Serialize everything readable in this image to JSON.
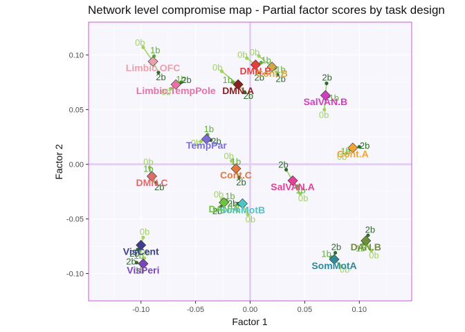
{
  "chart_data": {
    "type": "scatter",
    "title": "Network level compromise map - Partial factor scores by task design",
    "xlabel": "Factor 1",
    "ylabel": "Factor 2",
    "xlim": [
      -0.148,
      0.148
    ],
    "ylim": [
      -0.125,
      0.13
    ],
    "xticks": [
      -0.1,
      -0.05,
      0.0,
      0.05,
      0.1
    ],
    "yticks": [
      -0.1,
      -0.05,
      0.0,
      0.05,
      0.1
    ],
    "xtick_labels": [
      "-0.10",
      "-0.05",
      "0.00",
      "0.05",
      "0.10"
    ],
    "ytick_labels": [
      "-0.10",
      "-0.05",
      "0.00",
      "0.05",
      "0.10"
    ],
    "grid": true,
    "legend": "none",
    "dimension_colors": {
      "0b": "#9fd35f",
      "1b": "#5fae3a",
      "2b": "#2e6b2a"
    },
    "series": [
      {
        "name": "Limbic.OFC",
        "color": "#e8a0aa",
        "center": [
          -0.089,
          0.094
        ],
        "partials": {
          "0b": [
            -0.098,
            0.107
          ],
          "1b": [
            -0.088,
            0.099
          ],
          "2b": [
            -0.084,
            0.084
          ]
        }
      },
      {
        "name": "Limbic.TempPole",
        "color": "#ec6fa5",
        "center": [
          -0.068,
          0.073
        ],
        "partials": {
          "0b": [
            -0.073,
            0.069
          ],
          "1b": [
            -0.067,
            0.074
          ],
          "2b": [
            -0.063,
            0.075
          ]
        }
      },
      {
        "name": "DMN.B",
        "color": "#e43f3f",
        "center": [
          0.005,
          0.091
        ],
        "partials": {
          "0b": [
            -0.003,
            0.097
          ],
          "1b": [
            0.01,
            0.093
          ],
          "2b": [
            0.007,
            0.084
          ]
        }
      },
      {
        "name": "Cont.B",
        "color": "#d4a84a",
        "center": [
          0.02,
          0.089
        ],
        "partials": {
          "0b": [
            0.008,
            0.099
          ],
          "1b": [
            0.023,
            0.088
          ],
          "2b": [
            0.025,
            0.082
          ]
        }
      },
      {
        "name": "DMN.A",
        "color": "#8b2020",
        "center": [
          -0.011,
          0.073
        ],
        "partials": {
          "0b": [
            -0.026,
            0.085
          ],
          "1b": [
            -0.016,
            0.075
          ],
          "2b": [
            -0.005,
            0.066
          ]
        }
      },
      {
        "name": "SalVAN.B",
        "color": "#d13fc0",
        "center": [
          0.069,
          0.063
        ],
        "partials": {
          "0b": [
            0.068,
            0.05
          ],
          "1b": [
            0.072,
            0.062
          ],
          "2b": [
            0.07,
            0.074
          ]
        }
      },
      {
        "name": "TempPar",
        "color": "#7c6ed6",
        "center": [
          -0.04,
          0.023
        ],
        "partials": {
          "0b": [
            -0.045,
            0.021
          ],
          "1b": [
            -0.039,
            0.027
          ],
          "2b": [
            -0.036,
            0.022
          ]
        }
      },
      {
        "name": "Cont.A",
        "color": "#f1a436",
        "center": [
          0.094,
          0.015
        ],
        "partials": {
          "0b": [
            0.088,
            0.01
          ],
          "1b": [
            0.092,
            0.014
          ],
          "2b": [
            0.1,
            0.016
          ]
        }
      },
      {
        "name": "DMN.C",
        "color": "#e06b6b",
        "center": [
          -0.09,
          -0.011
        ],
        "partials": {
          "0b": [
            -0.092,
            -0.003
          ],
          "1b": [
            -0.091,
            -0.009
          ],
          "2b": [
            -0.086,
            -0.017
          ]
        }
      },
      {
        "name": "Cont.C",
        "color": "#e4773a",
        "center": [
          -0.013,
          -0.004
        ],
        "partials": {
          "0b": [
            -0.017,
            0.003
          ],
          "1b": [
            -0.013,
            -0.003
          ],
          "2b": [
            -0.01,
            -0.012
          ]
        }
      },
      {
        "name": "SalVAN.A",
        "color": "#e34195",
        "center": [
          0.039,
          -0.015
        ],
        "partials": {
          "0b": [
            0.046,
            -0.027
          ],
          "1b": [
            0.043,
            -0.02
          ],
          "2b": [
            0.033,
            -0.005
          ]
        }
      },
      {
        "name": "DAN.A",
        "color": "#6cc53c",
        "center": [
          -0.024,
          -0.035
        ],
        "partials": {
          "0b": [
            -0.026,
            -0.032
          ],
          "1b": [
            -0.022,
            -0.033
          ],
          "2b": [
            -0.027,
            -0.039
          ]
        }
      },
      {
        "name": "SomMotB",
        "color": "#4ec3c6",
        "center": [
          -0.007,
          -0.036
        ],
        "partials": {
          "0b": [
            -0.002,
            -0.046
          ],
          "1b": [
            -0.01,
            -0.037
          ],
          "2b": [
            -0.011,
            -0.036
          ]
        }
      },
      {
        "name": "DAN.B",
        "color": "#6f8f3a",
        "center": [
          0.106,
          -0.07
        ],
        "partials": {
          "0b": [
            0.111,
            -0.079
          ],
          "1b": [
            0.104,
            -0.073
          ],
          "2b": [
            0.108,
            -0.065
          ]
        }
      },
      {
        "name": "SomMotA",
        "color": "#2f8a98",
        "center": [
          0.077,
          -0.087
        ],
        "partials": {
          "0b": [
            0.083,
            -0.093
          ],
          "1b": [
            0.074,
            -0.085
          ],
          "2b": [
            0.078,
            -0.081
          ]
        }
      },
      {
        "name": "VisCent",
        "color": "#3d3f8f",
        "center": [
          -0.1,
          -0.074
        ],
        "partials": {
          "0b": [
            -0.098,
            -0.067
          ],
          "1b": [
            -0.101,
            -0.079
          ],
          "2b": [
            -0.103,
            -0.078
          ]
        }
      },
      {
        "name": "VisPeri",
        "color": "#7b44b8",
        "center": [
          -0.098,
          -0.091
        ],
        "partials": {
          "0b": [
            -0.097,
            -0.086
          ],
          "1b": [
            -0.099,
            -0.093
          ],
          "2b": [
            -0.104,
            -0.09
          ]
        }
      }
    ]
  }
}
